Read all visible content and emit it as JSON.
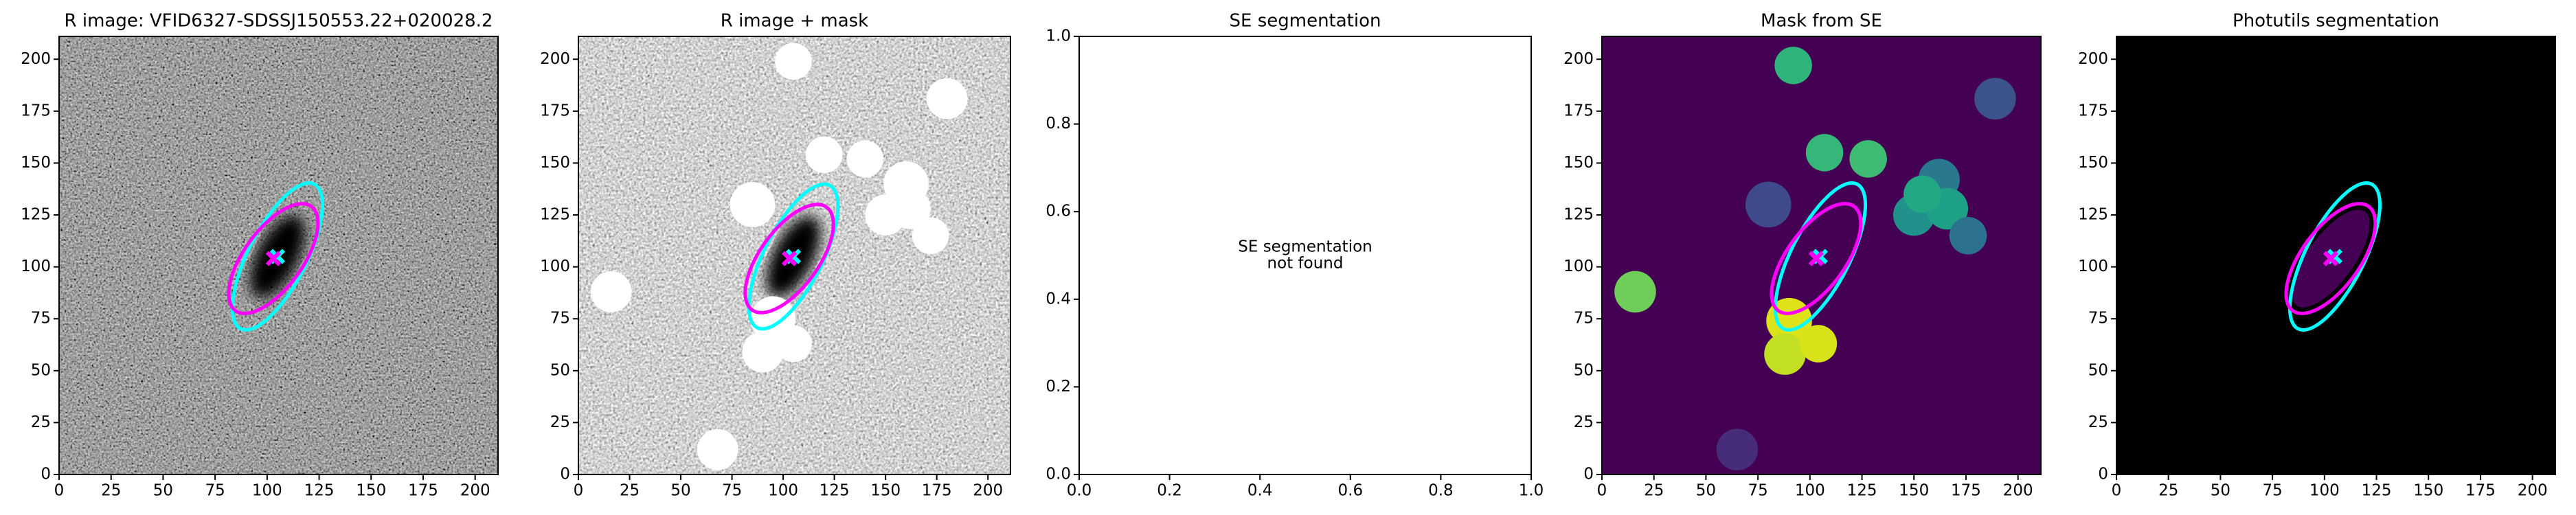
{
  "chart_data": [
    {
      "type": "image",
      "title": "R image: VFID6327-SDSSJ150553.22+020028.2",
      "background": "noise",
      "xlim": [
        0,
        211
      ],
      "ylim": [
        0,
        211
      ],
      "xticks": [
        0,
        25,
        50,
        75,
        100,
        125,
        150,
        175,
        200
      ],
      "yticks": [
        0,
        25,
        50,
        75,
        100,
        125,
        150,
        175,
        200
      ],
      "ellipses": [
        {
          "x": 105,
          "y": 105,
          "width": 78,
          "height": 28,
          "angle": 63,
          "color": "#00ffff"
        },
        {
          "x": 103,
          "y": 104,
          "width": 62,
          "height": 28,
          "angle": 54,
          "color": "#ff00ff"
        }
      ]
    },
    {
      "type": "image",
      "title": "R image + mask",
      "background": "noise-light",
      "mask_color": "#ffffff",
      "xlim": [
        0,
        211
      ],
      "ylim": [
        0,
        211
      ],
      "xticks": [
        0,
        25,
        50,
        75,
        100,
        125,
        150,
        175,
        200
      ],
      "yticks": [
        0,
        25,
        50,
        75,
        100,
        125,
        150,
        175,
        200
      ],
      "masks": [
        {
          "x": 105,
          "y": 199,
          "r": 9
        },
        {
          "x": 120,
          "y": 154,
          "r": 9
        },
        {
          "x": 140,
          "y": 152,
          "r": 9
        },
        {
          "x": 160,
          "y": 140,
          "r": 11
        },
        {
          "x": 150,
          "y": 125,
          "r": 10
        },
        {
          "x": 162,
          "y": 128,
          "r": 10
        },
        {
          "x": 172,
          "y": 115,
          "r": 9
        },
        {
          "x": 180,
          "y": 181,
          "r": 10
        },
        {
          "x": 85,
          "y": 130,
          "r": 11
        },
        {
          "x": 16,
          "y": 88,
          "r": 10
        },
        {
          "x": 95,
          "y": 75,
          "r": 11
        },
        {
          "x": 90,
          "y": 59,
          "r": 10
        },
        {
          "x": 105,
          "y": 63,
          "r": 9
        },
        {
          "x": 68,
          "y": 12,
          "r": 10
        }
      ],
      "ellipses": [
        {
          "x": 105,
          "y": 105,
          "width": 78,
          "height": 28,
          "angle": 63,
          "color": "#00ffff"
        },
        {
          "x": 103,
          "y": 104,
          "width": 62,
          "height": 28,
          "angle": 54,
          "color": "#ff00ff"
        }
      ]
    },
    {
      "type": "empty",
      "title": "SE segmentation",
      "annotation": [
        "SE segmentation",
        "not found"
      ],
      "xlim": [
        0,
        1
      ],
      "ylim": [
        0,
        1
      ],
      "xticks": [
        {
          "value": 0,
          "label": "0.0"
        },
        {
          "value": 0.2,
          "label": "0.2"
        },
        {
          "value": 0.4,
          "label": "0.4"
        },
        {
          "value": 0.6,
          "label": "0.6"
        },
        {
          "value": 0.8,
          "label": "0.8"
        },
        {
          "value": 1,
          "label": "1.0"
        }
      ],
      "yticks": [
        {
          "value": 0,
          "label": "0.0"
        },
        {
          "value": 0.2,
          "label": "0.2"
        },
        {
          "value": 0.4,
          "label": "0.4"
        },
        {
          "value": 0.6,
          "label": "0.6"
        },
        {
          "value": 0.8,
          "label": "0.8"
        },
        {
          "value": 1,
          "label": "1.0"
        }
      ]
    },
    {
      "type": "image",
      "title": "Mask from SE",
      "background": "#440154",
      "xlim": [
        0,
        211
      ],
      "ylim": [
        0,
        211
      ],
      "xticks": [
        0,
        25,
        50,
        75,
        100,
        125,
        150,
        175,
        200
      ],
      "yticks": [
        0,
        25,
        50,
        75,
        100,
        125,
        150,
        175,
        200
      ],
      "masks": [
        {
          "x": 92,
          "y": 197,
          "r": 9,
          "color": "#2fb47c"
        },
        {
          "x": 107,
          "y": 155,
          "r": 9,
          "color": "#35b779"
        },
        {
          "x": 128,
          "y": 152,
          "r": 9,
          "color": "#3fbc73"
        },
        {
          "x": 162,
          "y": 142,
          "r": 10,
          "color": "#2a788e"
        },
        {
          "x": 150,
          "y": 125,
          "r": 10,
          "color": "#21918c"
        },
        {
          "x": 166,
          "y": 128,
          "r": 10,
          "color": "#1fa187"
        },
        {
          "x": 154,
          "y": 135,
          "r": 9,
          "color": "#22a884"
        },
        {
          "x": 176,
          "y": 115,
          "r": 9,
          "color": "#2c728e"
        },
        {
          "x": 189,
          "y": 181,
          "r": 10,
          "color": "#3b528b"
        },
        {
          "x": 80,
          "y": 130,
          "r": 11,
          "color": "#3e4a89"
        },
        {
          "x": 16,
          "y": 88,
          "r": 10,
          "color": "#6ece58"
        },
        {
          "x": 90,
          "y": 74,
          "r": 11,
          "color": "#dde318"
        },
        {
          "x": 88,
          "y": 58,
          "r": 10,
          "color": "#c2df23"
        },
        {
          "x": 104,
          "y": 63,
          "r": 9,
          "color": "#d8e219"
        },
        {
          "x": 65,
          "y": 12,
          "r": 10,
          "color": "#472c7a"
        }
      ],
      "ellipses": [
        {
          "x": 105,
          "y": 105,
          "width": 78,
          "height": 28,
          "angle": 63,
          "color": "#00ffff"
        },
        {
          "x": 103,
          "y": 104,
          "width": 62,
          "height": 28,
          "angle": 54,
          "color": "#ff00ff"
        }
      ]
    },
    {
      "type": "image",
      "title": "Photutils segmentation",
      "background": "#000000",
      "segment_color": "#440154",
      "xlim": [
        0,
        211
      ],
      "ylim": [
        0,
        211
      ],
      "xticks": [
        0,
        25,
        50,
        75,
        100,
        125,
        150,
        175,
        200
      ],
      "yticks": [
        0,
        25,
        50,
        75,
        100,
        125,
        150,
        175,
        200
      ],
      "ellipses": [
        {
          "x": 105,
          "y": 105,
          "width": 78,
          "height": 28,
          "angle": 63,
          "color": "#00ffff"
        },
        {
          "x": 103,
          "y": 104,
          "width": 62,
          "height": 28,
          "angle": 54,
          "color": "#ff00ff"
        }
      ]
    }
  ]
}
